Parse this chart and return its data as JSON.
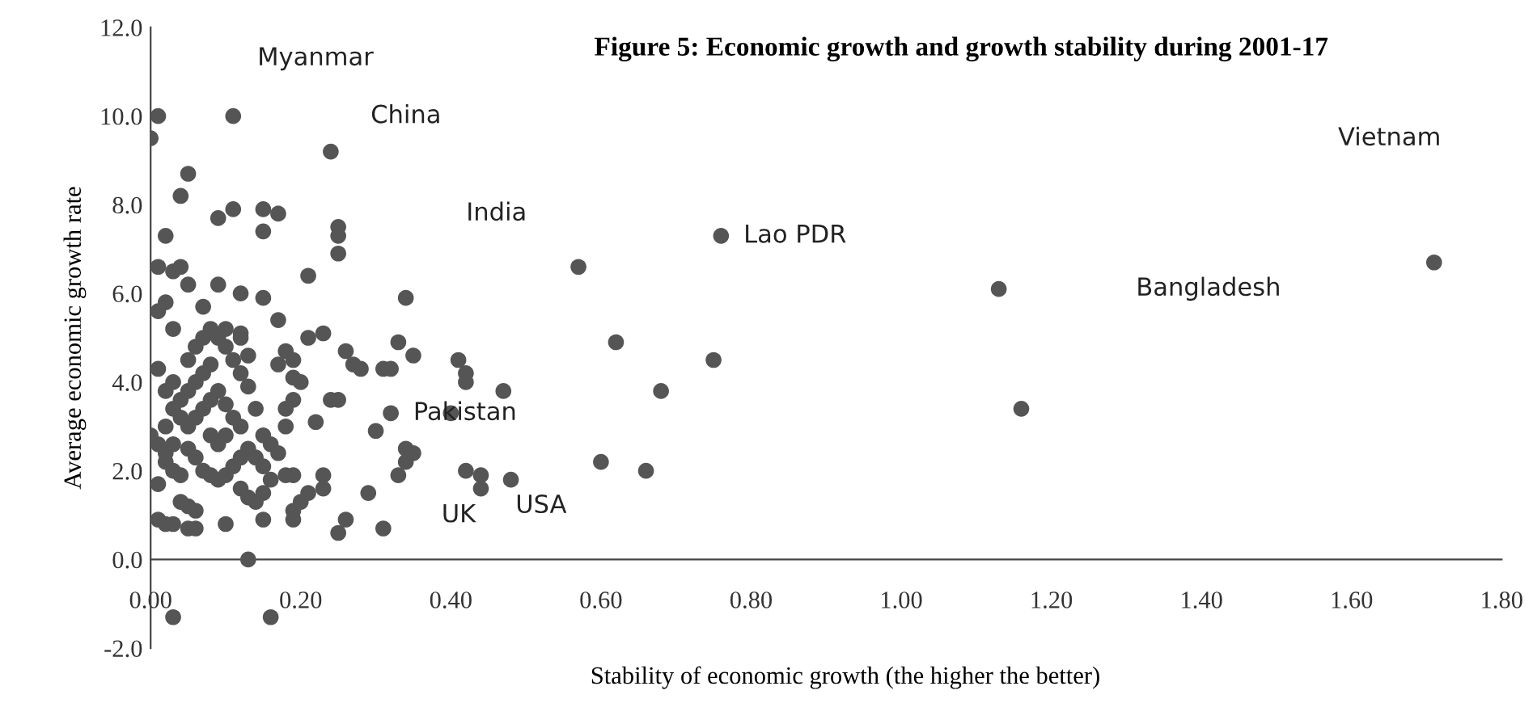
{
  "chart_data": {
    "type": "scatter",
    "title": "Figure 5: Economic growth and growth stability during 2001-17",
    "xlabel": "Stability of economic growth (the higher the better)",
    "ylabel": "Average economic growth rate",
    "x": [
      0.01,
      0.0,
      0.11,
      0.24,
      0.05,
      0.04,
      0.11,
      0.15,
      0.17,
      0.09,
      0.15,
      0.02,
      0.25,
      0.25,
      0.25,
      0.01,
      0.03,
      0.04,
      0.21,
      0.09,
      0.12,
      0.15,
      0.34,
      0.05,
      0.01,
      0.02,
      0.07,
      0.17,
      0.03,
      0.21,
      0.23,
      0.1,
      0.12,
      0.33,
      0.26,
      0.35,
      0.27,
      0.18,
      0.19,
      0.31,
      0.32,
      0.28,
      0.41,
      0.42,
      0.42,
      0.47,
      0.01,
      0.13,
      0.13,
      0.19,
      0.18,
      0.24,
      0.25,
      0.14,
      0.22,
      0.32,
      0.0,
      0.01,
      0.02,
      0.02,
      0.03,
      0.04,
      0.03,
      0.05,
      0.06,
      0.07,
      0.08,
      0.09,
      0.1,
      0.11,
      0.12,
      0.13,
      0.14,
      0.15,
      0.16,
      0.05,
      0.06,
      0.07,
      0.08,
      0.09,
      0.1,
      0.11,
      0.12,
      0.1,
      0.09,
      0.08,
      0.04,
      0.05,
      0.06,
      0.07,
      0.08,
      0.05,
      0.06,
      0.07,
      0.08,
      0.09,
      0.1,
      0.11,
      0.12,
      0.03,
      0.02,
      0.03,
      0.04,
      0.02,
      0.01,
      0.01,
      0.02,
      0.03,
      0.05,
      0.06,
      0.04,
      0.05,
      0.06,
      0.1,
      0.15,
      0.12,
      0.13,
      0.14,
      0.15,
      0.16,
      0.15,
      0.17,
      0.18,
      0.18,
      0.19,
      0.2,
      0.17,
      0.12,
      0.13,
      0.03,
      0.16,
      0.19,
      0.23,
      0.23,
      0.21,
      0.2,
      0.19,
      0.19,
      0.29,
      0.26,
      0.25,
      0.31,
      0.3,
      0.34,
      0.35,
      0.33,
      0.34,
      0.4,
      0.42,
      0.44,
      0.44,
      0.48,
      0.6,
      0.66,
      0.62,
      0.75,
      0.68,
      0.57,
      0.76,
      1.13,
      1.16,
      1.71
    ],
    "series": [
      {
        "color": "#555555",
        "values": [
          10.0,
          9.5,
          10.0,
          9.2,
          8.7,
          8.2,
          7.9,
          7.9,
          7.8,
          7.7,
          7.4,
          7.3,
          7.5,
          7.3,
          6.9,
          6.6,
          6.5,
          6.6,
          6.4,
          6.2,
          6.0,
          5.9,
          5.9,
          6.2,
          5.6,
          5.8,
          5.7,
          5.4,
          5.2,
          5.0,
          5.1,
          5.2,
          5.1,
          4.9,
          4.7,
          4.6,
          4.4,
          4.7,
          4.5,
          4.3,
          4.3,
          4.3,
          4.5,
          4.2,
          4.0,
          3.8,
          4.3,
          4.6,
          3.9,
          4.1,
          3.4,
          3.6,
          3.6,
          3.4,
          3.1,
          3.3,
          2.8,
          2.6,
          2.4,
          2.2,
          2.0,
          1.9,
          2.6,
          2.5,
          2.3,
          2.0,
          1.9,
          1.8,
          1.9,
          2.1,
          2.3,
          2.5,
          2.3,
          2.1,
          1.8,
          3.0,
          3.2,
          3.4,
          3.6,
          3.8,
          3.5,
          3.2,
          3.0,
          2.8,
          2.6,
          2.8,
          3.6,
          3.8,
          4.0,
          4.2,
          4.4,
          4.5,
          4.8,
          5.0,
          5.2,
          5.0,
          4.8,
          4.5,
          4.2,
          4.0,
          3.8,
          3.4,
          3.2,
          3.0,
          1.7,
          0.9,
          0.8,
          0.8,
          0.7,
          0.7,
          1.3,
          1.2,
          1.1,
          0.8,
          0.9,
          1.6,
          1.4,
          1.3,
          1.5,
          2.6,
          2.8,
          2.4,
          1.9,
          3.0,
          3.6,
          4.0,
          4.4,
          5.0,
          0.0,
          -1.3,
          -1.3,
          1.9,
          1.9,
          1.6,
          1.5,
          1.3,
          1.1,
          0.9,
          1.5,
          0.9,
          0.6,
          0.7,
          2.9,
          2.5,
          2.4,
          1.9,
          2.2,
          3.3,
          2.0,
          1.9,
          1.6,
          1.8,
          2.2,
          2.0,
          4.9,
          4.5,
          3.8,
          6.6,
          7.3,
          6.1,
          3.4,
          6.7
        ]
      }
    ],
    "marker": "circle",
    "xlim": [
      0,
      1.8
    ],
    "ylim": [
      -2,
      12
    ],
    "xticks": [
      {
        "value": 0,
        "label": "0.00"
      },
      {
        "value": 0.2,
        "label": "0.20"
      },
      {
        "value": 0.4,
        "label": "0.40"
      },
      {
        "value": 0.6,
        "label": "0.60"
      },
      {
        "value": 0.8,
        "label": "0.80"
      },
      {
        "value": 1.0,
        "label": "1.00"
      },
      {
        "value": 1.2,
        "label": "1.20"
      },
      {
        "value": 1.4,
        "label": "1.40"
      },
      {
        "value": 1.6,
        "label": "1.60"
      },
      {
        "value": 1.8,
        "label": "1.80"
      }
    ],
    "yticks": [
      {
        "value": -2,
        "label": "-2.0"
      },
      {
        "value": 0,
        "label": "0.0"
      },
      {
        "value": 2,
        "label": "2.0"
      },
      {
        "value": 4,
        "label": "4.0"
      },
      {
        "value": 6,
        "label": "6.0"
      },
      {
        "value": 8,
        "label": "8.0"
      },
      {
        "value": 10,
        "label": "10.0"
      },
      {
        "value": 12,
        "label": "12.0"
      }
    ],
    "grid": false,
    "annotations": [
      "Myanmar",
      "China",
      "India",
      {
        "text": "Lao PDR",
        "x": 0.76,
        "y": 7.3
      },
      "Vietnam",
      "Bangladesh",
      {
        "text": "Pakistan",
        "x": 0.32,
        "y": 3.3
      },
      "UK",
      "USA"
    ]
  }
}
